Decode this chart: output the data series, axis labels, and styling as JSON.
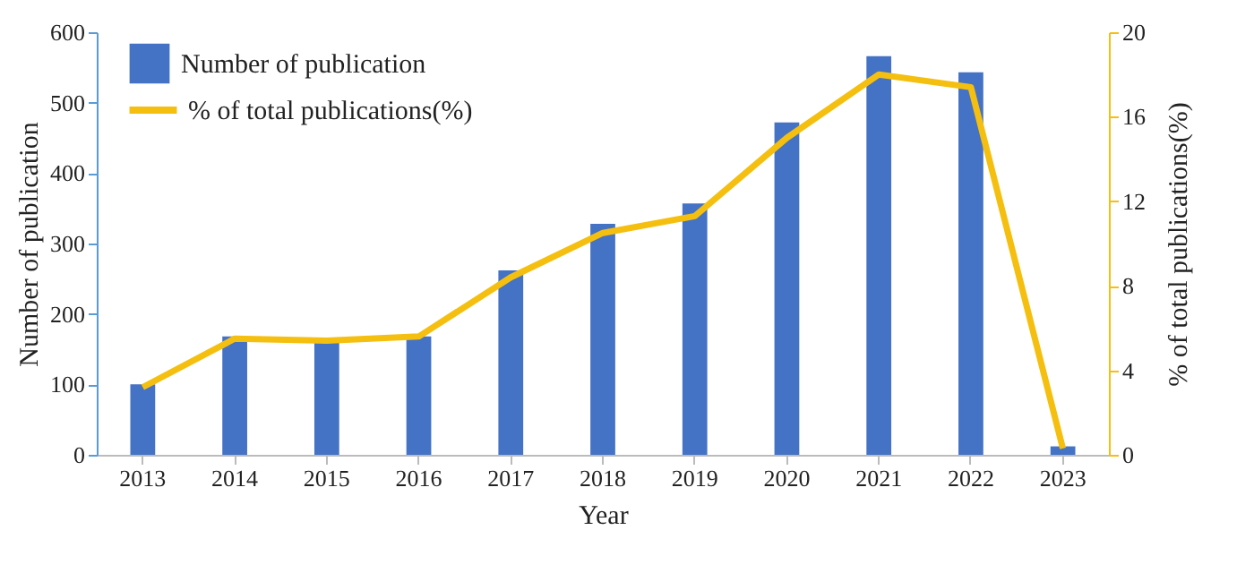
{
  "chart_data": {
    "type": "bar",
    "xlabel": "Year",
    "ylabel": "Number of publication",
    "y2label": "% of total publications(%)",
    "categories": [
      "2013",
      "2014",
      "2015",
      "2016",
      "2017",
      "2018",
      "2019",
      "2020",
      "2021",
      "2022",
      "2023"
    ],
    "series": [
      {
        "name": "Number of publication",
        "color": "#4472c4",
        "values": [
          100,
          168,
          160,
          168,
          262,
          328,
          357,
          472,
          566,
          543,
          12
        ]
      },
      {
        "name": "% of total publications(%)",
        "type": "line",
        "axis": "y2",
        "color": "#f5bf0f",
        "values": [
          3.2,
          5.5,
          5.4,
          5.6,
          8.4,
          10.5,
          11.3,
          15.0,
          18.0,
          17.4,
          0.3
        ]
      }
    ],
    "ylim": [
      0,
      600
    ],
    "yticks": [
      0,
      100,
      200,
      300,
      400,
      500,
      600
    ],
    "y2lim": [
      0,
      20
    ],
    "y2ticks": [
      0,
      4,
      8,
      12,
      16,
      20
    ],
    "grid": false,
    "legend": "top left",
    "marker": "none",
    "line_style": "solid"
  }
}
